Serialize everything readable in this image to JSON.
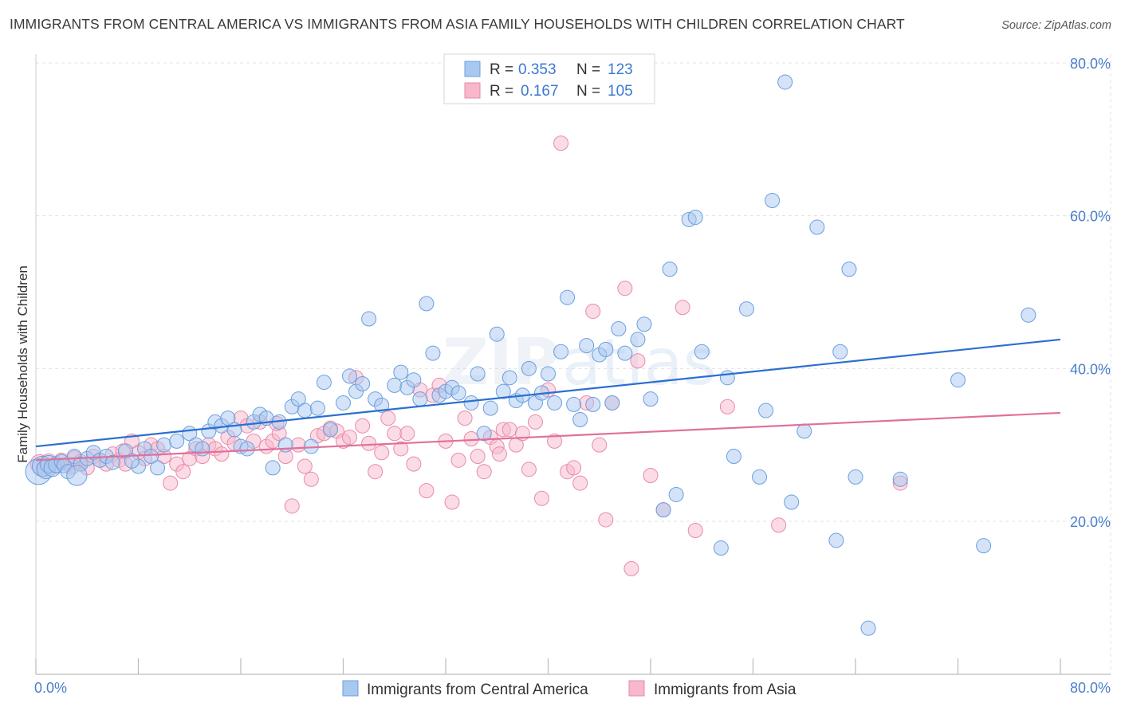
{
  "header": {
    "title": "IMMIGRANTS FROM CENTRAL AMERICA VS IMMIGRANTS FROM ASIA FAMILY HOUSEHOLDS WITH CHILDREN CORRELATION CHART",
    "source": "Source: ZipAtlas.com"
  },
  "watermark": {
    "zip": "ZIP",
    "atlas": "atlas"
  },
  "legend": {
    "r_label": "R =",
    "n_label": "N =",
    "series": [
      {
        "r": "0.353",
        "n": "123"
      },
      {
        "r": "0.167",
        "n": "105"
      }
    ]
  },
  "colors": {
    "blue_fill": "#a9c8f0",
    "blue_stroke": "#6a9fe0",
    "blue_line": "#2b6fd0",
    "pink_fill": "#f7b8cb",
    "pink_stroke": "#e98aa8",
    "pink_line": "#e0709a",
    "grid": "#e3e3e3",
    "axis_text": "#4a7fc9"
  },
  "chart_data": {
    "type": "scatter",
    "title": "IMMIGRANTS FROM CENTRAL AMERICA VS IMMIGRANTS FROM ASIA FAMILY HOUSEHOLDS WITH CHILDREN CORRELATION CHART",
    "xlabel": "",
    "ylabel": "Family Households with Children",
    "xlim": [
      0,
      80
    ],
    "ylim": [
      0,
      82
    ],
    "x_tick_labels": [
      "0.0%",
      "80.0%"
    ],
    "y_ticks": [
      20,
      40,
      60,
      80
    ],
    "y_tick_labels": [
      "20.0%",
      "40.0%",
      "60.0%",
      "80.0%"
    ],
    "grid": true,
    "legend_position": "top-center",
    "series": [
      {
        "name": "Immigrants from Central America",
        "color": "blue",
        "r": 0.353,
        "n": 123,
        "trend": {
          "x0": 0,
          "y0": 29.8,
          "x1": 80,
          "y1": 43.8
        },
        "points": [
          [
            0.2,
            26.5,
            1.8
          ],
          [
            0.5,
            27.2,
            1.4
          ],
          [
            0.8,
            26.8,
            1.3
          ],
          [
            1.0,
            27.5,
            1.2
          ],
          [
            1.3,
            27.0,
            1.2
          ],
          [
            1.6,
            27.4,
            1.1
          ],
          [
            2.0,
            27.8,
            1.0
          ],
          [
            2.2,
            27.3,
            1.0
          ],
          [
            2.5,
            26.5,
            1.0
          ],
          [
            3.0,
            28.5,
            1.0
          ],
          [
            3.5,
            27.5,
            1.0
          ],
          [
            4.0,
            28.2,
            1.0
          ],
          [
            4.5,
            29.0,
            1.0
          ],
          [
            5.0,
            28.0,
            1.0
          ],
          [
            5.5,
            28.5,
            1.0
          ],
          [
            6.0,
            27.7,
            1.0
          ],
          [
            7.0,
            29.2,
            1.0
          ],
          [
            8.0,
            27.2,
            1.0
          ],
          [
            8.5,
            29.5,
            1.0
          ],
          [
            9.0,
            28.5,
            1.0
          ],
          [
            10.0,
            30.0,
            1.0
          ],
          [
            11.0,
            30.5,
            1.0
          ],
          [
            12.0,
            31.5,
            1.0
          ],
          [
            12.5,
            30.0,
            1.0
          ],
          [
            13.5,
            31.8,
            1.0
          ],
          [
            14.0,
            33.0,
            1.0
          ],
          [
            14.5,
            32.5,
            1.0
          ],
          [
            15.0,
            33.5,
            1.0
          ],
          [
            15.5,
            32.0,
            1.0
          ],
          [
            16.0,
            29.8,
            1.0
          ],
          [
            17.0,
            33.0,
            1.0
          ],
          [
            17.5,
            34.0,
            1.0
          ],
          [
            18.0,
            33.5,
            1.0
          ],
          [
            18.5,
            27.0,
            1.0
          ],
          [
            19.0,
            33.0,
            1.0
          ],
          [
            19.5,
            30.0,
            1.0
          ],
          [
            20.0,
            35.0,
            1.0
          ],
          [
            20.5,
            36.0,
            1.0
          ],
          [
            21.0,
            34.5,
            1.0
          ],
          [
            22.0,
            34.8,
            1.0
          ],
          [
            22.5,
            38.2,
            1.0
          ],
          [
            23.0,
            32.0,
            1.0
          ],
          [
            24.0,
            35.5,
            1.0
          ],
          [
            24.5,
            39.0,
            1.0
          ],
          [
            25.0,
            37.0,
            1.0
          ],
          [
            25.5,
            38.0,
            1.0
          ],
          [
            26.0,
            46.5,
            1.0
          ],
          [
            26.5,
            36.0,
            1.0
          ],
          [
            27.0,
            35.2,
            1.0
          ],
          [
            28.0,
            37.8,
            1.0
          ],
          [
            28.5,
            39.5,
            1.0
          ],
          [
            29.0,
            37.5,
            1.0
          ],
          [
            29.5,
            38.5,
            1.0
          ],
          [
            30.0,
            36.0,
            1.0
          ],
          [
            30.5,
            48.5,
            1.0
          ],
          [
            31.0,
            42.0,
            1.0
          ],
          [
            31.5,
            36.5,
            1.0
          ],
          [
            32.0,
            37.0,
            1.0
          ],
          [
            32.5,
            37.5,
            1.0
          ],
          [
            33.0,
            36.8,
            1.0
          ],
          [
            34.0,
            35.5,
            1.0
          ],
          [
            34.5,
            39.3,
            1.0
          ],
          [
            35.0,
            31.5,
            1.0
          ],
          [
            35.5,
            34.8,
            1.0
          ],
          [
            36.0,
            44.5,
            1.0
          ],
          [
            36.5,
            37.0,
            1.0
          ],
          [
            37.0,
            38.8,
            1.0
          ],
          [
            37.5,
            35.8,
            1.0
          ],
          [
            38.0,
            36.5,
            1.0
          ],
          [
            38.5,
            40.0,
            1.0
          ],
          [
            39.0,
            35.5,
            1.0
          ],
          [
            39.5,
            36.8,
            1.0
          ],
          [
            40.0,
            39.3,
            1.0
          ],
          [
            40.5,
            35.5,
            1.0
          ],
          [
            41.0,
            42.2,
            1.0
          ],
          [
            41.5,
            49.3,
            1.0
          ],
          [
            42.0,
            35.3,
            1.0
          ],
          [
            42.5,
            33.3,
            1.0
          ],
          [
            43.0,
            43.0,
            1.0
          ],
          [
            43.5,
            35.3,
            1.0
          ],
          [
            44.0,
            41.8,
            1.0
          ],
          [
            44.5,
            42.5,
            1.0
          ],
          [
            45.0,
            35.5,
            1.0
          ],
          [
            45.5,
            45.2,
            1.0
          ],
          [
            46.0,
            42.0,
            1.0
          ],
          [
            47.0,
            43.8,
            1.0
          ],
          [
            47.5,
            45.8,
            1.0
          ],
          [
            48.0,
            36.0,
            1.0
          ],
          [
            49.0,
            21.5,
            1.0
          ],
          [
            49.5,
            53.0,
            1.0
          ],
          [
            50.0,
            23.5,
            1.0
          ],
          [
            51.0,
            59.5,
            1.0
          ],
          [
            51.5,
            59.8,
            1.0
          ],
          [
            52.0,
            42.2,
            1.0
          ],
          [
            53.5,
            16.5,
            1.0
          ],
          [
            54.0,
            38.8,
            1.0
          ],
          [
            54.5,
            28.5,
            1.0
          ],
          [
            55.5,
            47.8,
            1.0
          ],
          [
            56.5,
            25.8,
            1.0
          ],
          [
            57.0,
            34.5,
            1.0
          ],
          [
            57.5,
            62.0,
            1.0
          ],
          [
            58.5,
            77.5,
            1.0
          ],
          [
            59.0,
            22.5,
            1.0
          ],
          [
            60.0,
            31.8,
            1.0
          ],
          [
            61.0,
            58.5,
            1.0
          ],
          [
            62.5,
            17.5,
            1.0
          ],
          [
            62.8,
            42.2,
            1.0
          ],
          [
            63.5,
            53.0,
            1.0
          ],
          [
            64.0,
            25.8,
            1.0
          ],
          [
            65.0,
            6.0,
            1.0
          ],
          [
            67.5,
            25.5,
            1.0
          ],
          [
            72.0,
            38.5,
            1.0
          ],
          [
            74.0,
            16.8,
            1.0
          ],
          [
            77.5,
            47.0,
            1.0
          ],
          [
            7.5,
            27.9,
            1.0
          ],
          [
            9.5,
            27.0,
            1.0
          ],
          [
            13.0,
            29.5,
            1.0
          ],
          [
            16.5,
            29.5,
            1.0
          ],
          [
            21.5,
            29.8,
            1.0
          ],
          [
            3.2,
            26.0,
            1.4
          ]
        ]
      },
      {
        "name": "Immigrants from Asia",
        "color": "pink",
        "r": 0.167,
        "n": 105,
        "trend": {
          "x0": 0,
          "y0": 28.0,
          "x1": 80,
          "y1": 34.2
        },
        "points": [
          [
            0.3,
            27.5,
            1.3
          ],
          [
            0.7,
            27.0,
            1.2
          ],
          [
            1.0,
            27.8,
            1.1
          ],
          [
            1.5,
            27.2,
            1.0
          ],
          [
            2.0,
            28.0,
            1.0
          ],
          [
            2.5,
            27.5,
            1.0
          ],
          [
            3.0,
            28.3,
            1.0
          ],
          [
            3.5,
            27.8,
            1.0
          ],
          [
            4.0,
            27.0,
            1.0
          ],
          [
            4.5,
            28.5,
            1.0
          ],
          [
            5.0,
            28.0,
            1.0
          ],
          [
            5.5,
            27.5,
            1.0
          ],
          [
            6.0,
            28.8,
            1.0
          ],
          [
            6.5,
            28.0,
            1.0
          ],
          [
            7.0,
            27.5,
            1.0
          ],
          [
            7.5,
            30.5,
            1.0
          ],
          [
            8.0,
            29.0,
            1.0
          ],
          [
            8.5,
            28.2,
            1.0
          ],
          [
            9.0,
            30.0,
            1.0
          ],
          [
            9.5,
            29.5,
            1.0
          ],
          [
            10.0,
            28.5,
            1.0
          ],
          [
            10.5,
            25.0,
            1.0
          ],
          [
            11.0,
            27.5,
            1.0
          ],
          [
            11.5,
            26.5,
            1.0
          ],
          [
            12.0,
            28.2,
            1.0
          ],
          [
            12.5,
            29.5,
            1.0
          ],
          [
            13.0,
            28.5,
            1.0
          ],
          [
            13.5,
            30.0,
            1.0
          ],
          [
            14.0,
            29.5,
            1.0
          ],
          [
            14.5,
            28.8,
            1.0
          ],
          [
            15.0,
            31.0,
            1.0
          ],
          [
            15.5,
            30.2,
            1.0
          ],
          [
            16.0,
            33.5,
            1.0
          ],
          [
            16.5,
            32.5,
            1.0
          ],
          [
            17.0,
            30.5,
            1.0
          ],
          [
            17.5,
            33.0,
            1.0
          ],
          [
            18.0,
            29.8,
            1.0
          ],
          [
            18.5,
            30.5,
            1.0
          ],
          [
            19.0,
            31.5,
            1.0
          ],
          [
            19.5,
            28.5,
            1.0
          ],
          [
            20.0,
            22.0,
            1.0
          ],
          [
            20.5,
            30.0,
            1.0
          ],
          [
            21.0,
            27.2,
            1.0
          ],
          [
            21.5,
            25.5,
            1.0
          ],
          [
            22.0,
            31.2,
            1.0
          ],
          [
            22.5,
            31.5,
            1.0
          ],
          [
            23.0,
            32.2,
            1.0
          ],
          [
            23.5,
            31.8,
            1.0
          ],
          [
            24.0,
            30.5,
            1.0
          ],
          [
            24.5,
            31.0,
            1.0
          ],
          [
            25.0,
            38.8,
            1.0
          ],
          [
            25.5,
            32.5,
            1.0
          ],
          [
            26.0,
            30.2,
            1.0
          ],
          [
            26.5,
            26.5,
            1.0
          ],
          [
            27.0,
            29.0,
            1.0
          ],
          [
            27.5,
            33.5,
            1.0
          ],
          [
            28.0,
            31.5,
            1.0
          ],
          [
            28.5,
            29.5,
            1.0
          ],
          [
            29.0,
            31.5,
            1.0
          ],
          [
            29.5,
            27.5,
            1.0
          ],
          [
            30.0,
            37.2,
            1.0
          ],
          [
            30.5,
            24.0,
            1.0
          ],
          [
            31.0,
            36.5,
            1.0
          ],
          [
            31.5,
            37.8,
            1.0
          ],
          [
            32.0,
            30.5,
            1.0
          ],
          [
            32.5,
            22.5,
            1.0
          ],
          [
            33.0,
            28.0,
            1.0
          ],
          [
            33.5,
            33.5,
            1.0
          ],
          [
            34.0,
            30.8,
            1.0
          ],
          [
            34.5,
            28.5,
            1.0
          ],
          [
            35.0,
            26.5,
            1.0
          ],
          [
            35.5,
            31.0,
            1.0
          ],
          [
            36.0,
            29.8,
            1.0
          ],
          [
            36.5,
            32.0,
            1.0
          ],
          [
            37.0,
            32.0,
            1.0
          ],
          [
            37.5,
            30.0,
            1.0
          ],
          [
            38.0,
            31.5,
            1.0
          ],
          [
            38.5,
            26.8,
            1.0
          ],
          [
            39.0,
            33.0,
            1.0
          ],
          [
            39.5,
            23.0,
            1.0
          ],
          [
            40.0,
            37.2,
            1.0
          ],
          [
            40.5,
            30.5,
            1.0
          ],
          [
            41.0,
            69.5,
            1.0
          ],
          [
            41.5,
            26.5,
            1.0
          ],
          [
            42.0,
            27.0,
            1.0
          ],
          [
            42.5,
            25.0,
            1.0
          ],
          [
            43.0,
            35.5,
            1.0
          ],
          [
            43.5,
            47.5,
            1.0
          ],
          [
            44.0,
            30.0,
            1.0
          ],
          [
            44.5,
            20.2,
            1.0
          ],
          [
            45.0,
            35.5,
            1.0
          ],
          [
            46.0,
            50.5,
            1.0
          ],
          [
            46.5,
            13.8,
            1.0
          ],
          [
            47.0,
            41.0,
            1.0
          ],
          [
            48.0,
            26.0,
            1.0
          ],
          [
            49.0,
            21.5,
            1.0
          ],
          [
            50.5,
            48.0,
            1.0
          ],
          [
            51.5,
            18.8,
            1.0
          ],
          [
            54.0,
            35.0,
            1.0
          ],
          [
            58.0,
            19.5,
            1.0
          ],
          [
            67.5,
            25.0,
            1.0
          ],
          [
            2.8,
            27.2,
            1.1
          ],
          [
            6.8,
            29.2,
            1.0
          ],
          [
            18.8,
            32.8,
            1.0
          ],
          [
            36.2,
            28.8,
            1.0
          ]
        ]
      }
    ]
  },
  "bottom_legend": [
    {
      "label": "Immigrants from Central America"
    },
    {
      "label": "Immigrants from Asia"
    }
  ]
}
